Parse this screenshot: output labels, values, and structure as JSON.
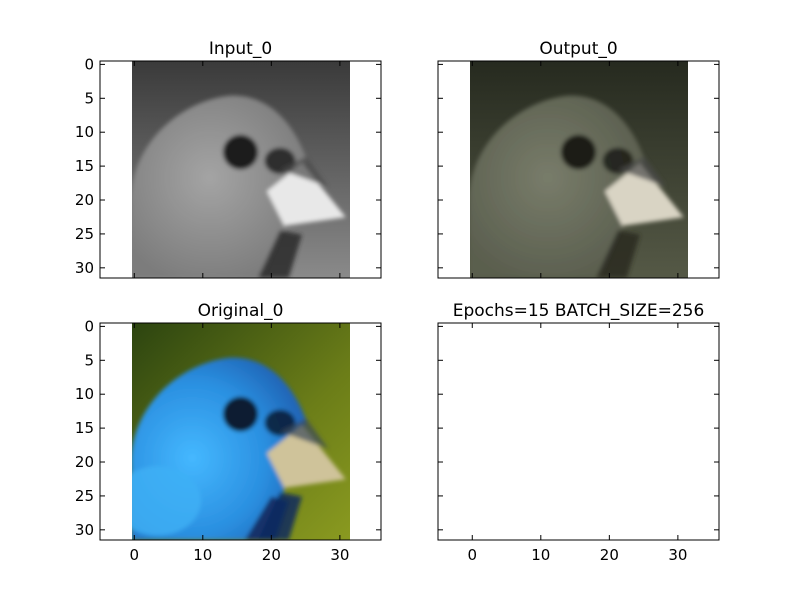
{
  "figure": {
    "layout": "2x2 subplot grid",
    "shared_axes": "sharex and sharey across panels"
  },
  "chart_data": [
    {
      "type": "image",
      "title": "Input_0",
      "xlim": [
        -5,
        36
      ],
      "ylim": [
        31.5,
        -0.5
      ],
      "xticks": [
        0,
        10,
        20,
        30
      ],
      "xtick_labels_visible": false,
      "yticks": [
        0,
        5,
        10,
        15,
        20,
        25,
        30
      ],
      "ytick_labels_visible": true,
      "image_extent": [
        -0.5,
        31.5,
        31.5,
        -0.5
      ],
      "image_resolution": [
        32,
        32
      ],
      "colormap": "grayscale",
      "content": "grayscale close-up of bird head facing right (beak at right)"
    },
    {
      "type": "image",
      "title": "Output_0",
      "xlim": [
        -5,
        36
      ],
      "ylim": [
        31.5,
        -0.5
      ],
      "xticks": [
        0,
        10,
        20,
        30
      ],
      "xtick_labels_visible": false,
      "yticks": [
        0,
        5,
        10,
        15,
        20,
        25,
        30
      ],
      "ytick_labels_visible": false,
      "image_extent": [
        -0.5,
        31.5,
        31.5,
        -0.5
      ],
      "image_resolution": [
        32,
        32
      ],
      "colormap": "rgb (muted olive/gray colorization)",
      "content": "colorized reconstruction of bird head, desaturated greenish-gray tones"
    },
    {
      "type": "image",
      "title": "Original_0",
      "xlim": [
        -5,
        36
      ],
      "ylim": [
        31.5,
        -0.5
      ],
      "xticks": [
        0,
        10,
        20,
        30
      ],
      "xtick_labels_visible": true,
      "yticks": [
        0,
        5,
        10,
        15,
        20,
        25,
        30
      ],
      "ytick_labels_visible": true,
      "image_extent": [
        -0.5,
        31.5,
        31.5,
        -0.5
      ],
      "image_resolution": [
        32,
        32
      ],
      "colormap": "rgb",
      "content": "blue indigo bunting head on olive-green background, pale beak at right"
    },
    {
      "type": "empty",
      "title": "Epochs=15 BATCH_SIZE=256",
      "xlim": [
        -5,
        36
      ],
      "ylim": [
        31.5,
        -0.5
      ],
      "xticks": [
        0,
        10,
        20,
        30
      ],
      "xtick_labels_visible": true,
      "yticks": [
        0,
        5,
        10,
        15,
        20,
        25,
        30
      ],
      "ytick_labels_visible": false
    }
  ],
  "colors": {
    "input": {
      "bg_top": "#3a3a3a",
      "bg_bottom": "#8a8a8a",
      "head": "#9a9a9a",
      "eye": "#1e1e1e",
      "beak": "#e8e8e8"
    },
    "output": {
      "bg_top": "#2a2d22",
      "bg_bottom": "#5a5e4a",
      "head": "#6e7262",
      "eye": "#1b1d16",
      "beak": "#d9d4c4"
    },
    "original": {
      "bg_top": "#2f4a10",
      "bg_bottom": "#7b8c1a",
      "head": "#2a8fe0",
      "head_light": "#3fb0f5",
      "eye": "#0a1a33",
      "beak": "#cfc39a"
    }
  }
}
